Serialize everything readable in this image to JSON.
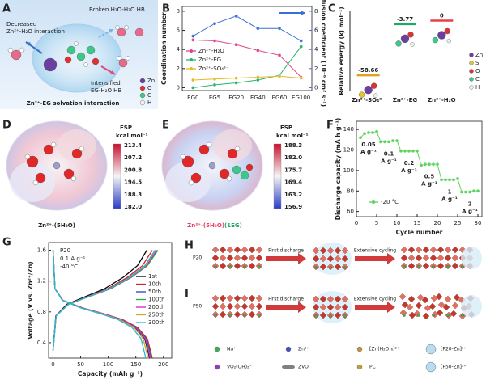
{
  "panel_labels": [
    "A",
    "B",
    "C",
    "D",
    "E",
    "F",
    "G",
    "H",
    "I"
  ],
  "panel_a": {
    "decreased": "Decreased",
    "zn_h2o": "Zn²⁺-H₂O interaction",
    "broken": "Broken H₂O-H₂O HB",
    "intensified": "Intensified",
    "eg_h2o": "EG-H₂O HB",
    "solvation": "Zn²⁺-EG solvation interaction",
    "legend": [
      "Zn",
      "O",
      "C",
      "H"
    ]
  },
  "panel_d": {
    "esp": "ESP",
    "unit": "kcal mol⁻¹",
    "ticks": [
      "213.4",
      "207.2",
      "200.8",
      "194.5",
      "188.3",
      "182.0"
    ],
    "caption": "Zn²⁺-(5H₂O)"
  },
  "panel_e": {
    "esp": "ESP",
    "unit": "kcal mol⁻¹",
    "ticks": [
      "188.3",
      "182.0",
      "175.7",
      "169.4",
      "163.2",
      "156.9"
    ],
    "caption": "Zn²⁺-(5H₂O)",
    "caption_eg": "(1EG)"
  },
  "panel_h": {
    "sample": "P20",
    "step1": "First discharge",
    "step2": "Extensive cycling"
  },
  "panel_i": {
    "sample": "P50",
    "step1": "First discharge",
    "step2": "Extensive cycling"
  },
  "legend_hi": [
    "Na⁺",
    "Zn²⁺",
    "[Zn(H₂O)₆]²⁺",
    "[P20-Zn]²⁺",
    "VO₂(OH)₂⁻",
    "ZVO",
    "PC",
    "[P50-Zn]²⁺"
  ],
  "chart_data": [
    {
      "type": "line",
      "markers": true,
      "categories": [
        "EG0",
        "EG5",
        "EG20",
        "EG40",
        "EG60",
        "EG100"
      ],
      "ylabel": "Coordination number",
      "y2label": "Diffusion coefficient (10⁻⁶ cm² s⁻¹)",
      "ylim": [
        -0.3,
        8.5
      ],
      "yticks": [
        0,
        2,
        4,
        6,
        8
      ],
      "y2lim": [
        -0.3,
        8.5
      ],
      "y2ticks": [
        0,
        2,
        4,
        6,
        8
      ],
      "y2color": "#3b6fd8",
      "series": [
        {
          "name": "Zn²⁺-H₂O",
          "color": "#d9468a",
          "values": [
            5.0,
            4.9,
            4.5,
            3.9,
            3.4,
            1.1
          ]
        },
        {
          "name": "Zn²⁺-EG",
          "color": "#27b36a",
          "values": [
            0,
            0.3,
            0.5,
            0.8,
            1.3,
            4.3
          ]
        },
        {
          "name": "Zn²⁺-SO₄²⁻",
          "color": "#e8b820",
          "values": [
            0.8,
            0.9,
            1.0,
            1.1,
            1.2,
            1.0
          ]
        },
        {
          "color": "#3b6fd8",
          "axis": "y2",
          "values": [
            5.4,
            6.7,
            7.5,
            6.2,
            6.2,
            4.9
          ]
        }
      ]
    },
    {
      "type": "level",
      "ylabel": "Relative energy (kJ mol⁻¹)",
      "categories": [
        "Zn²⁺-SO₄²⁻",
        "Zn²⁺-EG",
        "Zn²⁺-H₂O"
      ],
      "values": [
        -58.66,
        -3.77,
        0
      ],
      "colors": [
        "#e0a020",
        "#20a866",
        "#e8404a"
      ],
      "ylim": [
        -75,
        10
      ],
      "legend": [
        "Zn",
        "S",
        "O",
        "C",
        "H"
      ],
      "legend_colors": [
        "#6a3fa0",
        "#e8c230",
        "#e03030",
        "#3cc88a",
        "#f0f0f0"
      ]
    },
    {
      "type": "line",
      "markers": true,
      "xlabel": "Cycle number",
      "ylabel": "Discharge capacity (mA h g⁻¹)",
      "x": [
        1,
        2,
        3,
        4,
        5,
        6,
        7,
        8,
        9,
        10,
        11,
        12,
        13,
        14,
        15,
        16,
        17,
        18,
        19,
        20,
        21,
        22,
        23,
        24,
        25,
        26,
        27,
        28,
        29,
        30
      ],
      "xlim": [
        0,
        31
      ],
      "xticks": [
        0,
        5,
        10,
        15,
        20,
        25,
        30
      ],
      "ylim": [
        55,
        148
      ],
      "yticks": [
        60,
        80,
        100,
        120,
        140
      ],
      "series": [
        {
          "name": "-20 °C",
          "color": "#5cd35c",
          "values": [
            132,
            136,
            137,
            137,
            138,
            128,
            128,
            128,
            129,
            129,
            119,
            119,
            119,
            119,
            119,
            105,
            106,
            106,
            106,
            106,
            91,
            91,
            91,
            91,
            92,
            79,
            79,
            79,
            80,
            80
          ]
        }
      ],
      "rate_labels": [
        "0.05",
        "0.1",
        "0.2",
        "0.5",
        "1",
        "2"
      ],
      "rate_unit": "A g⁻¹"
    },
    {
      "type": "line",
      "xlabel": "Capacity (mAh g⁻¹)",
      "ylabel": "Voltage (V vs. Zn²⁺/Zn)",
      "xlim": [
        -8,
        215
      ],
      "xticks": [
        0,
        50,
        100,
        150,
        200
      ],
      "ylim": [
        0.2,
        1.7
      ],
      "yticks": [
        0.4,
        0.8,
        1.2,
        1.6
      ],
      "annotations": [
        "P20",
        "0.1 A g⁻¹",
        "-40 °C"
      ],
      "series": [
        {
          "name": "1st",
          "color": "#000000",
          "x": [
            0,
            3.5,
            17.5,
            52.5,
            87.5,
            122.5,
            148.8,
            166.3,
            175,
            null,
            0,
            5.1,
            25.5,
            59.5,
            93.5,
            127.5,
            153,
            170
          ],
          "values": [
            1.6,
            1.1,
            0.95,
            0.85,
            0.78,
            0.7,
            0.6,
            0.45,
            0.2,
            null,
            0.3,
            0.75,
            0.9,
            1.0,
            1.1,
            1.25,
            1.4,
            1.6
          ]
        },
        {
          "name": "10th",
          "color": "#e02020",
          "x": [
            0,
            3.6,
            18,
            54,
            90,
            126,
            153,
            171,
            180,
            null,
            0,
            5.4,
            27,
            63,
            99,
            135,
            162,
            180
          ],
          "values": [
            1.6,
            1.1,
            0.95,
            0.85,
            0.78,
            0.7,
            0.6,
            0.45,
            0.2,
            null,
            0.3,
            0.75,
            0.9,
            1.0,
            1.1,
            1.25,
            1.4,
            1.6
          ]
        },
        {
          "name": "50th",
          "color": "#2040e0",
          "x": [
            0,
            3.6,
            17.8,
            53.4,
            89,
            124.6,
            151.3,
            169.1,
            178,
            null,
            0,
            5.6,
            27.8,
            64.8,
            101.8,
            138.8,
            166.5,
            185
          ],
          "values": [
            1.6,
            1.1,
            0.95,
            0.85,
            0.78,
            0.7,
            0.6,
            0.45,
            0.2,
            null,
            0.3,
            0.75,
            0.9,
            1.0,
            1.1,
            1.25,
            1.4,
            1.6
          ]
        },
        {
          "name": "100th",
          "color": "#20b040",
          "x": [
            0,
            3.5,
            17.7,
            53.1,
            88.5,
            123.9,
            150.5,
            168.2,
            177,
            null,
            0,
            5.7,
            28.5,
            66.5,
            104.5,
            142.5,
            171,
            190
          ],
          "values": [
            1.6,
            1.1,
            0.95,
            0.85,
            0.78,
            0.7,
            0.6,
            0.45,
            0.2,
            null,
            0.3,
            0.75,
            0.9,
            1.0,
            1.1,
            1.25,
            1.4,
            1.6
          ]
        },
        {
          "name": "200th",
          "color": "#d020d0",
          "x": [
            0,
            3.5,
            17.6,
            52.8,
            88,
            123.2,
            149.6,
            167.2,
            176,
            null,
            0,
            5.6,
            28.2,
            65.8,
            103.4,
            141,
            169.2,
            188
          ],
          "values": [
            1.6,
            1.1,
            0.95,
            0.85,
            0.78,
            0.7,
            0.6,
            0.45,
            0.2,
            null,
            0.3,
            0.75,
            0.9,
            1.0,
            1.1,
            1.25,
            1.4,
            1.6
          ]
        },
        {
          "name": "250th",
          "color": "#c8b020",
          "x": [
            0,
            3.4,
            17.2,
            51.6,
            86,
            120.4,
            146.2,
            163.4,
            172,
            null,
            0,
            5.6,
            27.9,
            65.1,
            102.3,
            139.5,
            167.4,
            186
          ],
          "values": [
            1.6,
            1.1,
            0.95,
            0.85,
            0.78,
            0.7,
            0.6,
            0.45,
            0.2,
            null,
            0.3,
            0.75,
            0.9,
            1.0,
            1.1,
            1.25,
            1.4,
            1.6
          ]
        },
        {
          "name": "300th",
          "color": "#20b8d8",
          "x": [
            0,
            3.4,
            16.8,
            50.4,
            84,
            117.6,
            142.8,
            159.6,
            168,
            null,
            0,
            5.6,
            27.8,
            64.8,
            101.8,
            138.8,
            166.5,
            185
          ],
          "values": [
            1.6,
            1.1,
            0.95,
            0.85,
            0.78,
            0.7,
            0.6,
            0.45,
            0.2,
            null,
            0.3,
            0.75,
            0.9,
            1.0,
            1.1,
            1.25,
            1.4,
            1.6
          ]
        }
      ]
    }
  ]
}
